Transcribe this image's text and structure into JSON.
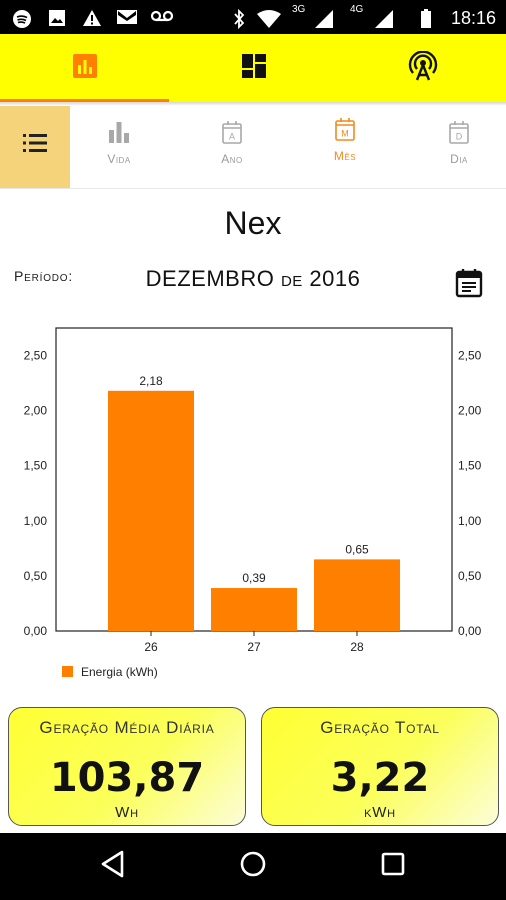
{
  "status_bar": {
    "time": "18:16",
    "network_1": "3G",
    "network_2": "4G",
    "icons": [
      "spotify-icon",
      "image-icon",
      "warning-icon",
      "gmail-icon",
      "voicemail-icon",
      "bluetooth-icon",
      "wifi-icon",
      "signal-icon",
      "signal-icon",
      "battery-icon"
    ]
  },
  "top_tabs": [
    {
      "icon": "bar-chart-icon",
      "active": true
    },
    {
      "icon": "dashboard-icon",
      "active": false
    },
    {
      "icon": "antenna-icon",
      "active": false
    }
  ],
  "sub_tabs": [
    {
      "label": "Vida",
      "icon": "bar-chart-icon",
      "active": false
    },
    {
      "label": "Ano",
      "icon": "calendar-a-icon",
      "icon_letter": "A",
      "active": false
    },
    {
      "label": "Mês",
      "icon": "calendar-m-icon",
      "icon_letter": "M",
      "active": true
    },
    {
      "label": "Dia",
      "icon": "calendar-d-icon",
      "icon_letter": "D",
      "active": false
    }
  ],
  "plant_name": "Nex",
  "period": {
    "label": "Período:",
    "value": "DEZEMBRO de 2016"
  },
  "chart_data": {
    "type": "bar",
    "categories": [
      "26",
      "27",
      "28"
    ],
    "series": [
      {
        "name": "Energia (kWh)",
        "values": [
          2.18,
          0.39,
          0.65
        ]
      }
    ],
    "data_labels": [
      "2,18",
      "0,39",
      "0,65"
    ],
    "ytick_labels": [
      "0,00",
      "0,50",
      "1,00",
      "1,50",
      "2,00",
      "2,50"
    ],
    "ylim": [
      0,
      2.75
    ],
    "legend_position": "bottom-left",
    "bar_color": "#ff8000"
  },
  "cards": [
    {
      "title": "Geração Média Diária",
      "value": "103,87",
      "unit": "Wh"
    },
    {
      "title": "Geração Total",
      "value": "3,22",
      "unit": "kWh"
    }
  ],
  "colors": {
    "accent": "#ff8000",
    "header_yellow": "#ffff00",
    "menu_bg": "#f5d37a",
    "inactive": "#9a9a9a"
  }
}
